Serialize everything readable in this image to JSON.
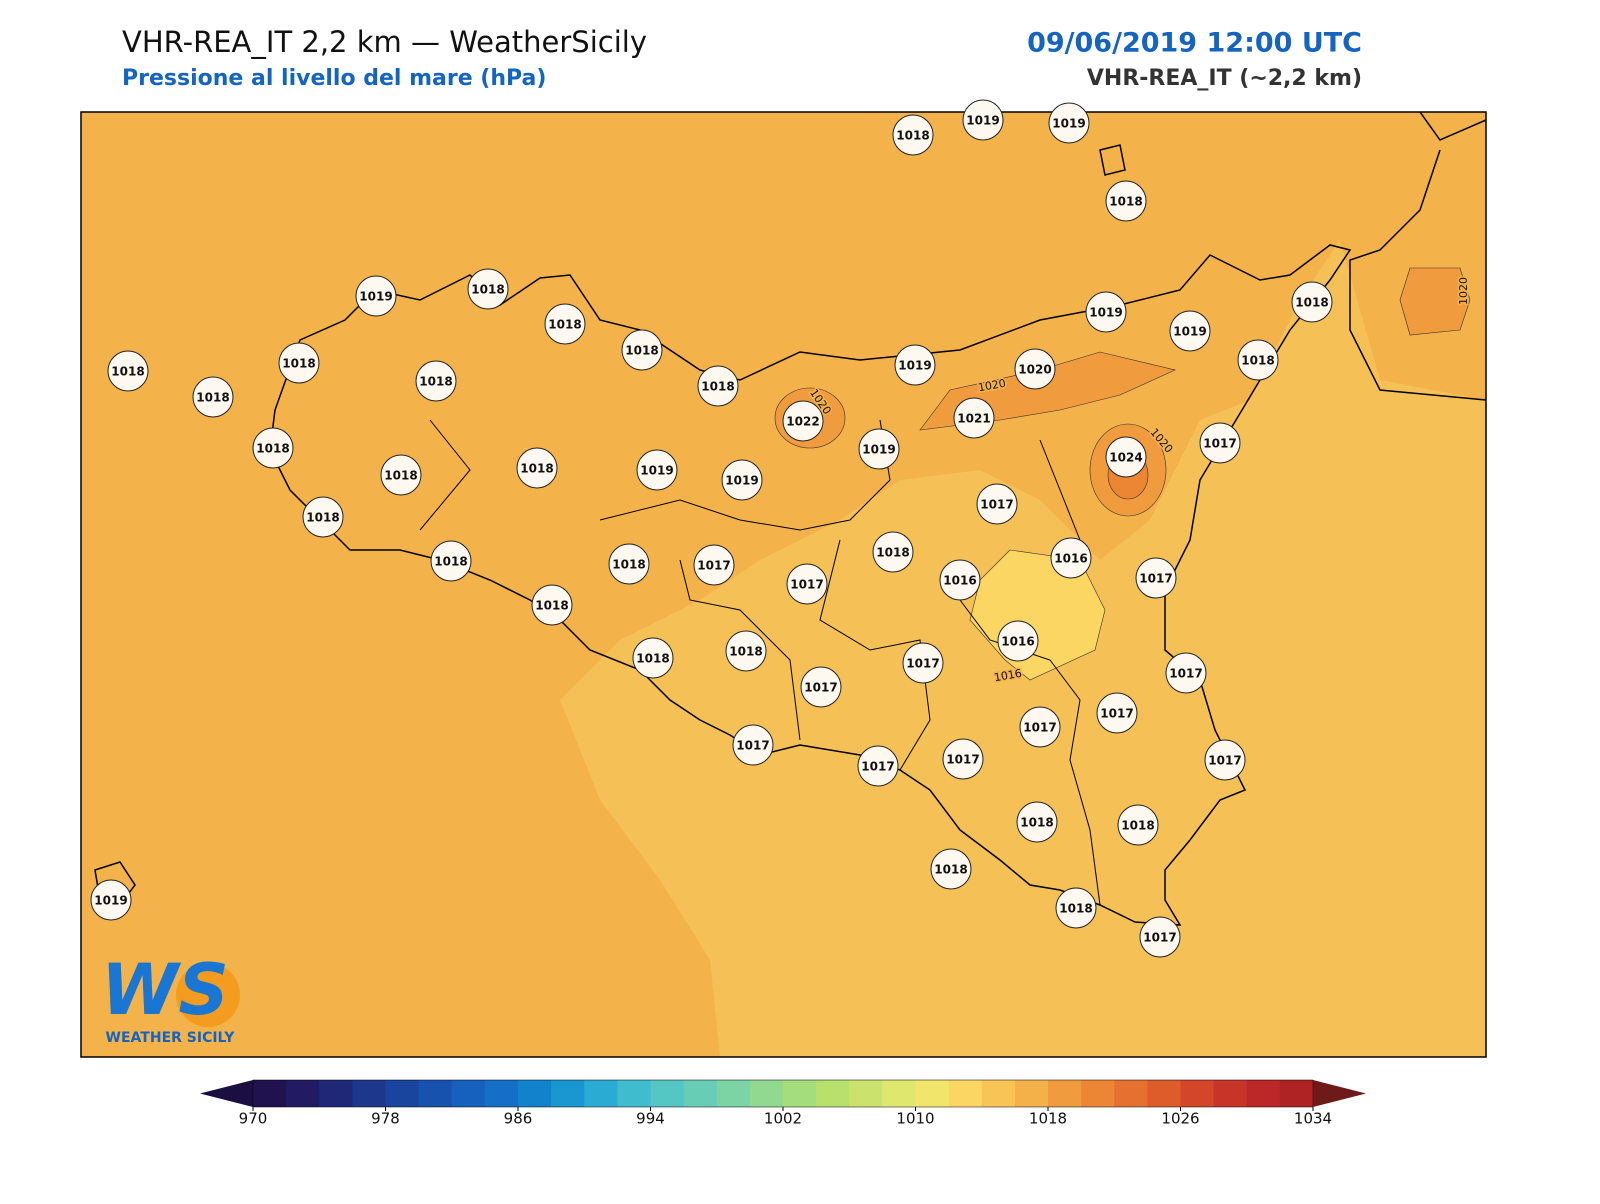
{
  "header": {
    "title": "VHR-REA_IT 2,2 km — WeatherSicily",
    "subtitle": "Pressione al livello del mare (hPa)",
    "datetime": "09/06/2019 12:00 UTC",
    "model": "VHR-REA_IT (~2,2 km)"
  },
  "stations": [
    1018,
    1019,
    1019,
    1018,
    1019,
    1018,
    1018,
    1018,
    1018,
    1018,
    1018,
    1018,
    1018,
    1019,
    1020,
    1019,
    1019,
    1018,
    1018,
    1022,
    1021,
    1019,
    1024,
    1017,
    1018,
    1018,
    1018,
    1019,
    1019,
    1017,
    1018,
    1018,
    1016,
    1016,
    1017,
    1018,
    1018,
    1017,
    1017,
    1018,
    1016,
    1018,
    1018,
    1017,
    1017,
    1017,
    1017,
    1017,
    1017,
    1017,
    1017,
    1017,
    1018,
    1018,
    1018,
    1018,
    1017,
    1019
  ],
  "contour_labels": [
    1020,
    1020,
    1020,
    1020,
    1016
  ],
  "logo": {
    "mark": "WS",
    "name": "WEATHER SICILY"
  },
  "colorbar": {
    "range": [
      970,
      1034
    ],
    "ticks": [
      970,
      978,
      986,
      994,
      1002,
      1010,
      1018,
      1026,
      1034
    ],
    "colors": [
      "#20124f",
      "#221a62",
      "#1f2877",
      "#1c378b",
      "#19459e",
      "#1753ae",
      "#1561bd",
      "#1370c6",
      "#1382cc",
      "#1a96d1",
      "#2aabd3",
      "#3fbcce",
      "#54c6c4",
      "#68cdb5",
      "#7cd3a3",
      "#90d98f",
      "#a4dd7b",
      "#b8e06c",
      "#cbe36c",
      "#dfe76f",
      "#f2e56c",
      "#fbd662",
      "#f8c455",
      "#f4b049",
      "#f09b3e",
      "#ec8534",
      "#e6702e",
      "#de5b2a",
      "#d44629",
      "#c93428",
      "#bc2727",
      "#b02325"
    ],
    "under": "#1a0f40",
    "over": "#6e1a1a"
  }
}
